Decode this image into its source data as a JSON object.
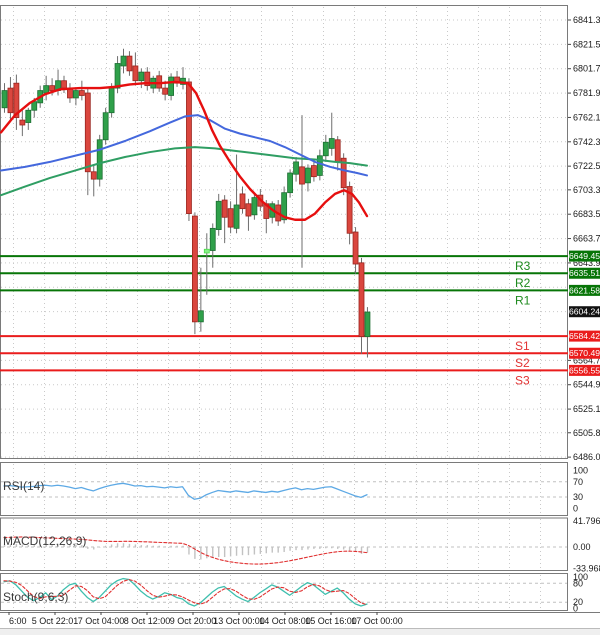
{
  "chart_data": {
    "type": "candlestick",
    "timeframe_note": "",
    "price_axis": {
      "visible_ticks": [
        6841.35,
        6821.55,
        6801.75,
        6781.95,
        6762.15,
        6742.35,
        6722.55,
        6703.3,
        6683.5,
        6663.7,
        6643.9,
        6564.7,
        6544.9,
        6525.1,
        6505.85,
        6486.05
      ],
      "grid_extra_prices": [
        6624.1,
        6604.3,
        6584.5
      ]
    },
    "levels": [
      {
        "name": "R3",
        "price": 6649.45,
        "kind": "resistance"
      },
      {
        "name": "R2",
        "price": 6635.51,
        "kind": "resistance"
      },
      {
        "name": "R1",
        "price": 6621.58,
        "kind": "resistance"
      },
      {
        "name": "S1",
        "price": 6584.42,
        "kind": "support"
      },
      {
        "name": "S2",
        "price": 6570.49,
        "kind": "support"
      },
      {
        "name": "S3",
        "price": 6556.55,
        "kind": "support"
      }
    ],
    "current_price": 6604.24,
    "time_axis": [
      "6:00",
      "5 Oct 22:01",
      "7 Oct 04:00",
      "8 Oct 12:00",
      "9 Oct 20:00",
      "13 Oct 00:00",
      "14 Oct 08:00",
      "15 Oct 16:00",
      "17 Oct 00:00"
    ],
    "candles": [
      [
        6770,
        6790,
        6766,
        6784
      ],
      [
        6786,
        6795,
        6760,
        6766
      ],
      [
        6790,
        6797,
        6752,
        6762
      ],
      [
        6760,
        6768,
        6747,
        6756
      ],
      [
        6758,
        6770,
        6752,
        6768
      ],
      [
        6768,
        6778,
        6762,
        6775
      ],
      [
        6774,
        6788,
        6770,
        6784
      ],
      [
        6782,
        6796,
        6776,
        6788
      ],
      [
        6788,
        6794,
        6780,
        6784
      ],
      [
        6784,
        6801,
        6780,
        6792
      ],
      [
        6792,
        6796,
        6782,
        6786
      ],
      [
        6786,
        6790,
        6774,
        6778
      ],
      [
        6778,
        6786,
        6772,
        6784
      ],
      [
        6784,
        6792,
        6776,
        6780
      ],
      [
        6782,
        6786,
        6699,
        6718
      ],
      [
        6718,
        6724,
        6698,
        6712
      ],
      [
        6712,
        6748,
        6706,
        6744
      ],
      [
        6744,
        6770,
        6740,
        6766
      ],
      [
        6766,
        6790,
        6762,
        6786
      ],
      [
        6786,
        6812,
        6782,
        6806
      ],
      [
        6804,
        6818,
        6798,
        6812
      ],
      [
        6812,
        6816,
        6796,
        6800
      ],
      [
        6804,
        6815,
        6788,
        6792
      ],
      [
        6792,
        6802,
        6786,
        6799
      ],
      [
        6799,
        6803,
        6784,
        6788
      ],
      [
        6786,
        6796,
        6782,
        6794
      ],
      [
        6796,
        6800,
        6783,
        6786
      ],
      [
        6786,
        6792,
        6776,
        6781
      ],
      [
        6780,
        6798,
        6776,
        6795
      ],
      [
        6795,
        6800,
        6787,
        6790
      ],
      [
        6789,
        6803,
        6785,
        6794
      ],
      [
        6791,
        6794,
        6678,
        6684
      ],
      [
        6682,
        6685,
        6586,
        6596
      ],
      [
        6596,
        6640,
        6588,
        6605
      ],
      [
        6652,
        6668,
        6618,
        6655,
        1
      ],
      [
        6654,
        6676,
        6640,
        6672
      ],
      [
        6671,
        6700,
        6666,
        6694
      ],
      [
        6695,
        6699,
        6660,
        6681
      ],
      [
        6688,
        6694,
        6668,
        6673
      ],
      [
        6672,
        6732,
        6668,
        6691
      ],
      [
        6700,
        6706,
        6684,
        6688
      ],
      [
        6692,
        6696,
        6670,
        6682
      ],
      [
        6683,
        6700,
        6679,
        6697
      ],
      [
        6699,
        6704,
        6686,
        6690
      ],
      [
        6692,
        6695,
        6668,
        6680
      ],
      [
        6681,
        6694,
        6676,
        6692
      ],
      [
        6691,
        6695,
        6674,
        6678
      ],
      [
        6679,
        6706,
        6676,
        6701
      ],
      [
        6701,
        6720,
        6697,
        6717
      ],
      [
        6716,
        6730,
        6710,
        6726
      ],
      [
        6722,
        6764,
        6640,
        6708
      ],
      [
        6709,
        6724,
        6702,
        6721
      ],
      [
        6723,
        6728,
        6710,
        6714
      ],
      [
        6715,
        6736,
        6711,
        6731
      ],
      [
        6731,
        6748,
        6726,
        6742
      ],
      [
        6737,
        6766,
        6731,
        6745
      ],
      [
        6744,
        6747,
        6719,
        6726
      ],
      [
        6729,
        6733,
        6699,
        6705
      ],
      [
        6706,
        6710,
        6659,
        6668
      ],
      [
        6669,
        6673,
        6635,
        6643
      ],
      [
        6644,
        6648,
        6570,
        6584
      ],
      [
        6584,
        6608,
        6567,
        6604
      ]
    ],
    "moving_averages": {
      "fast_red": [
        [
          1,
          6750
        ],
        [
          15,
          6764
        ],
        [
          30,
          6774
        ],
        [
          45,
          6781
        ],
        [
          60,
          6785
        ],
        [
          80,
          6786
        ],
        [
          100,
          6786
        ],
        [
          115,
          6787
        ],
        [
          130,
          6789
        ],
        [
          145,
          6790
        ],
        [
          160,
          6790
        ],
        [
          175,
          6791
        ],
        [
          188,
          6790
        ],
        [
          196,
          6782
        ],
        [
          204,
          6768
        ],
        [
          212,
          6752
        ],
        [
          220,
          6739
        ],
        [
          230,
          6726
        ],
        [
          240,
          6714
        ],
        [
          250,
          6704
        ],
        [
          262,
          6694
        ],
        [
          274,
          6686
        ],
        [
          285,
          6681
        ],
        [
          295,
          6679
        ],
        [
          305,
          6679
        ],
        [
          315,
          6684
        ],
        [
          325,
          6693
        ],
        [
          335,
          6700
        ],
        [
          344,
          6703
        ],
        [
          352,
          6700
        ],
        [
          359,
          6693
        ],
        [
          367,
          6682
        ]
      ],
      "mid_blue": [
        [
          1,
          6719
        ],
        [
          25,
          6722
        ],
        [
          50,
          6726
        ],
        [
          75,
          6731
        ],
        [
          100,
          6736
        ],
        [
          125,
          6743
        ],
        [
          150,
          6751
        ],
        [
          170,
          6758
        ],
        [
          185,
          6763
        ],
        [
          198,
          6764
        ],
        [
          210,
          6760
        ],
        [
          225,
          6753
        ],
        [
          240,
          6749
        ],
        [
          255,
          6746
        ],
        [
          270,
          6743
        ],
        [
          285,
          6738
        ],
        [
          300,
          6732
        ],
        [
          315,
          6726
        ],
        [
          330,
          6722
        ],
        [
          345,
          6719
        ],
        [
          357,
          6717
        ],
        [
          367,
          6715
        ]
      ],
      "slow_green": [
        [
          1,
          6699
        ],
        [
          25,
          6706
        ],
        [
          50,
          6713
        ],
        [
          75,
          6719
        ],
        [
          100,
          6725
        ],
        [
          125,
          6730
        ],
        [
          150,
          6734
        ],
        [
          175,
          6737
        ],
        [
          195,
          6738
        ],
        [
          215,
          6737
        ],
        [
          235,
          6735
        ],
        [
          255,
          6733
        ],
        [
          275,
          6731
        ],
        [
          295,
          6729
        ],
        [
          315,
          6728
        ],
        [
          335,
          6726
        ],
        [
          350,
          6725
        ],
        [
          367,
          6723
        ]
      ]
    },
    "indicators": {
      "rsi": {
        "label": "RSI(14)",
        "ticks": [
          "100",
          "70",
          "30",
          "0"
        ],
        "level_lines": [
          70,
          30
        ],
        "values": [
          59,
          60,
          58,
          56,
          57,
          58,
          60,
          61,
          59,
          61,
          59,
          56,
          52,
          55,
          50,
          46,
          52,
          57,
          61,
          64,
          66,
          63,
          59,
          60,
          57,
          58,
          56,
          54,
          57,
          55,
          57,
          34,
          24,
          27,
          36,
          42,
          47,
          45,
          43,
          46,
          44,
          42,
          46,
          44,
          42,
          45,
          43,
          47,
          51,
          54,
          49,
          52,
          50,
          53,
          56,
          57,
          51,
          45,
          39,
          33,
          29,
          36
        ]
      },
      "macd": {
        "label": "MACD(12,26,9)",
        "ticks": [
          "41.796",
          "0.00",
          "-33.968"
        ],
        "tick_values": [
          41.796,
          0,
          -33.968
        ],
        "histogram": [
          4,
          5,
          5,
          4,
          3,
          3,
          4,
          4,
          3,
          5,
          4,
          3,
          4,
          3,
          -3,
          -4,
          -1,
          2,
          4,
          6,
          6,
          5,
          4,
          3,
          3,
          2,
          2,
          1,
          2,
          2,
          2,
          -12,
          -19,
          -20,
          -18,
          -17,
          -16,
          -16,
          -15,
          -14,
          -13,
          -13,
          -12,
          -11,
          -10,
          -9,
          -9,
          -8,
          -6,
          -5,
          -5,
          -4,
          -3,
          -3,
          -2,
          -2,
          -3,
          -4,
          -6,
          -8,
          -11,
          -9
        ],
        "signal": [
          15,
          15.4,
          15.8,
          16,
          15.8,
          15.4,
          15,
          14.6,
          14.2,
          13.8,
          13.4,
          13,
          12.6,
          12.2,
          11.4,
          10.4,
          9.6,
          9,
          8.8,
          8.8,
          9,
          9,
          8.8,
          8.5,
          8.2,
          7.8,
          7.4,
          7,
          6.6,
          6.2,
          5.8,
          2.5,
          -3,
          -8.5,
          -13,
          -16.5,
          -19.5,
          -21.8,
          -23.6,
          -25,
          -26,
          -26.8,
          -27.2,
          -27.2,
          -26.8,
          -26,
          -25,
          -23.6,
          -22,
          -20.2,
          -18.2,
          -16.2,
          -14.2,
          -12.2,
          -10.4,
          -8.8,
          -7.6,
          -6.8,
          -6.6,
          -7,
          -7.8,
          -9
        ]
      },
      "stoch": {
        "label": "Stoch(9,6,3)",
        "ticks": [
          "100",
          "80",
          "20",
          "0"
        ],
        "level_lines": [
          80,
          20
        ],
        "k": [
          85,
          88,
          75,
          55,
          35,
          25,
          35,
          50,
          28,
          40,
          60,
          75,
          80,
          55,
          35,
          22,
          35,
          55,
          75,
          88,
          95,
          92,
          75,
          55,
          40,
          30,
          38,
          50,
          45,
          35,
          30,
          15,
          8,
          18,
          35,
          52,
          65,
          70,
          55,
          40,
          30,
          22,
          35,
          50,
          62,
          75,
          68,
          55,
          42,
          55,
          70,
          82,
          75,
          60,
          45,
          55,
          65,
          50,
          30,
          15,
          8,
          14
        ],
        "d": [
          88,
          87,
          83,
          73,
          55,
          38,
          32,
          37,
          38,
          39,
          43,
          58,
          72,
          70,
          57,
          37,
          31,
          37,
          55,
          73,
          86,
          92,
          87,
          74,
          57,
          42,
          36,
          39,
          44,
          43,
          37,
          27,
          18,
          14,
          20,
          35,
          51,
          62,
          63,
          55,
          42,
          31,
          29,
          36,
          49,
          62,
          68,
          66,
          55,
          51,
          56,
          69,
          76,
          72,
          60,
          53,
          55,
          57,
          48,
          32,
          18,
          12
        ]
      }
    },
    "colors": {
      "bull_fill": "#2fa04a",
      "bull_stroke": "#1d6e33",
      "bear_fill": "#da463e",
      "bear_stroke": "#99251f",
      "bright_fill": "#86ef86",
      "bright_stroke": "#4ade4a",
      "wick": "#6e6e6e",
      "ma_fast": "#e60f0f",
      "ma_mid": "#4468dd",
      "ma_slow": "#2f9e63",
      "resistance": "#077507",
      "support": "#ea1c1c",
      "resistance_text": "#1f8b1f",
      "support_text": "#e23333",
      "current_badge": "#111111",
      "rsi_line": "#5da9e5",
      "macd_hist": "#c2c2c2",
      "macd_signal": "#e03030",
      "stoch_k": "#3fbfae",
      "stoch_d": "#e03030",
      "grid": "#c9c9c9",
      "frame": "#7a7a7a",
      "axis_text": "#1a1a1a"
    }
  }
}
